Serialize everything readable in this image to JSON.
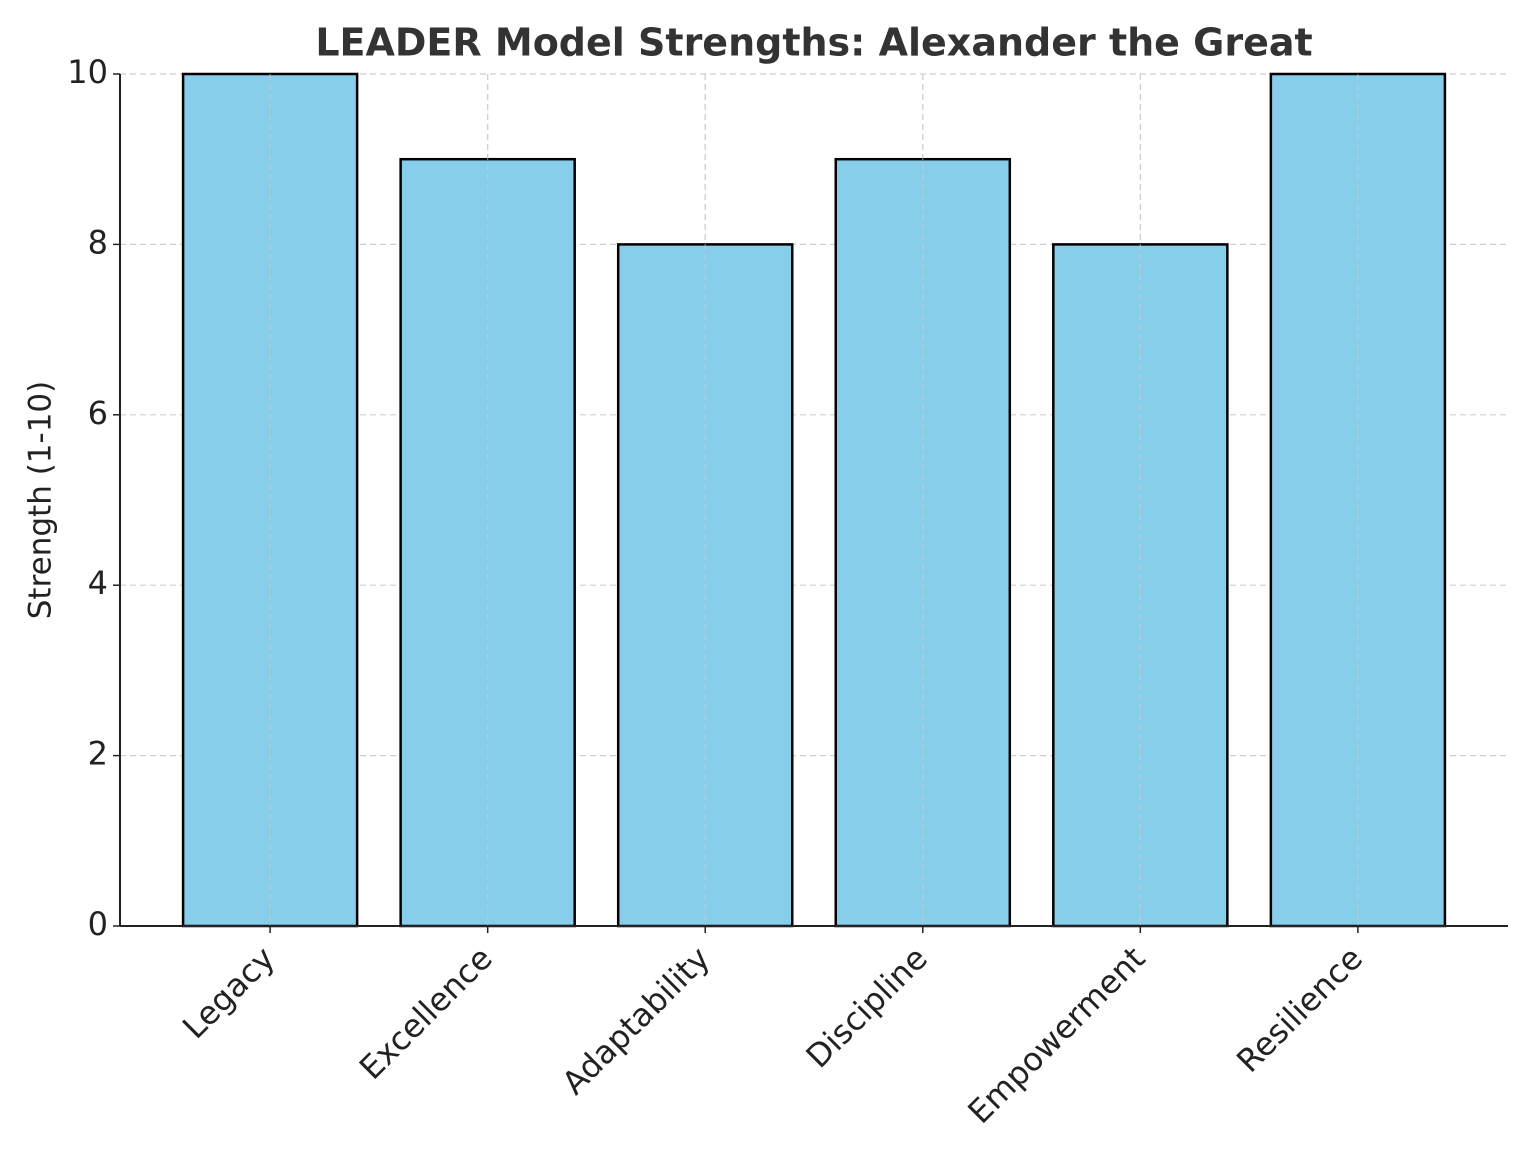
{
  "chart_data": {
    "type": "bar",
    "title": "LEADER Model Strengths: Alexander the Great",
    "y_label": "Strength (1-10)",
    "categories": [
      "Legacy",
      "Excellence",
      "Adaptability",
      "Discipline",
      "Empowerment",
      "Resilience"
    ],
    "values": [
      10,
      9,
      8,
      9,
      8,
      10
    ],
    "color": "#87ceeb",
    "edgecolor": "#000000",
    "ylim": [
      0,
      10
    ],
    "yticks": [
      0,
      2,
      4,
      6,
      8,
      10
    ],
    "grid": true
  }
}
